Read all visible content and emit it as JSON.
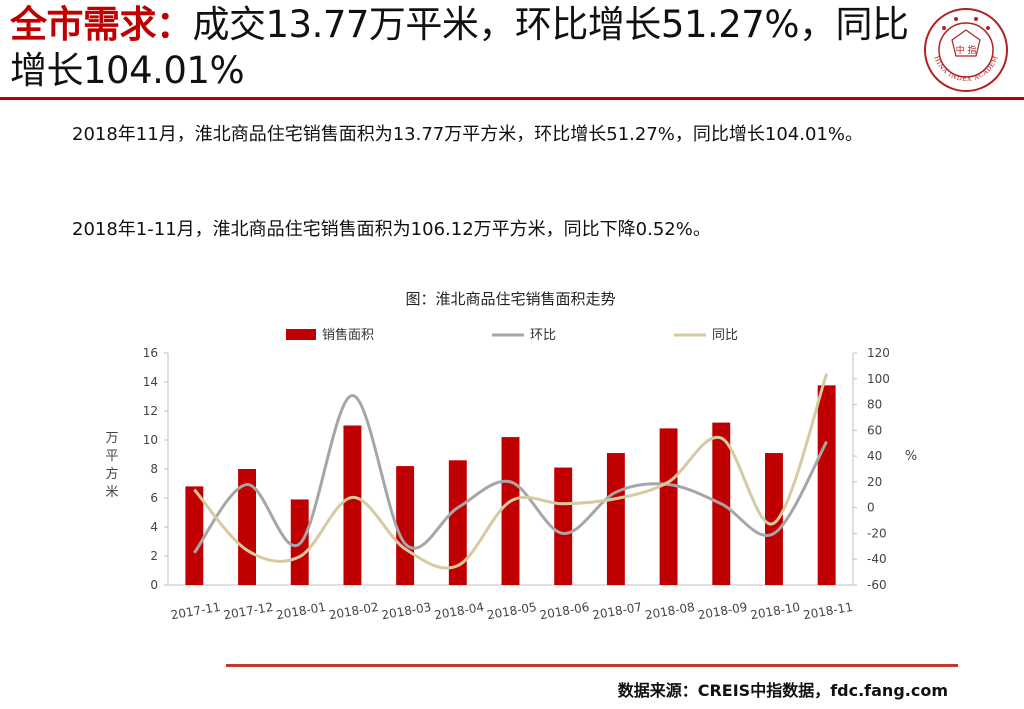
{
  "slide": {
    "title_red": "全市需求：",
    "title_rest": "成交13.77万平米，环比增长51.27%，同比增长104.01%",
    "para1": "2018年11月，淮北商品住宅销售面积为13.77万平方米，环比增长51.27%，同比增长104.01%。",
    "para2": "2018年1-11月，淮北商品住宅销售面积为106.12万平方米，同比下降0.52%。",
    "source": "数据来源：CREIS中指数据，fdc.fang.com",
    "logo_text": "中 指",
    "logo_ring_text": "CHINA INDEX ACADEMY"
  },
  "colors": {
    "accent": "#c00000",
    "bar": "#c00000",
    "mom_line": "#a6a6a6",
    "yoy_line": "#d6caa0"
  },
  "chart_data": {
    "type": "bar",
    "title": "图：淮北商品住宅销售面积走势",
    "categories": [
      "2017-11",
      "2017-12",
      "2018-01",
      "2018-02",
      "2018-03",
      "2018-04",
      "2018-05",
      "2018-06",
      "2018-07",
      "2018-08",
      "2018-09",
      "2018-10",
      "2018-11"
    ],
    "series": [
      {
        "name": "销售面积",
        "axis": "left",
        "kind": "bar",
        "values": [
          6.8,
          8.0,
          5.9,
          11.0,
          8.2,
          8.6,
          10.2,
          8.1,
          9.1,
          10.8,
          11.2,
          9.1,
          13.77
        ]
      },
      {
        "name": "环比",
        "axis": "right",
        "kind": "line",
        "values": [
          -35,
          18,
          -28,
          87,
          -28,
          0,
          20,
          -20,
          12,
          18,
          3,
          -20,
          51.27
        ]
      },
      {
        "name": "同比",
        "axis": "right",
        "kind": "line",
        "values": [
          14,
          -33,
          -38,
          8,
          -32,
          -45,
          5,
          3,
          7,
          20,
          54,
          -12,
          104.01
        ]
      }
    ],
    "ylabel": "万平方米",
    "y2label": "%",
    "ylim": [
      0,
      16
    ],
    "y2lim": [
      -60,
      120
    ],
    "yticks": [
      0,
      2,
      4,
      6,
      8,
      10,
      12,
      14,
      16
    ],
    "y2ticks": [
      -60,
      -40,
      -20,
      0,
      20,
      40,
      60,
      80,
      100,
      120
    ],
    "legend_position": "top",
    "grid": false
  }
}
